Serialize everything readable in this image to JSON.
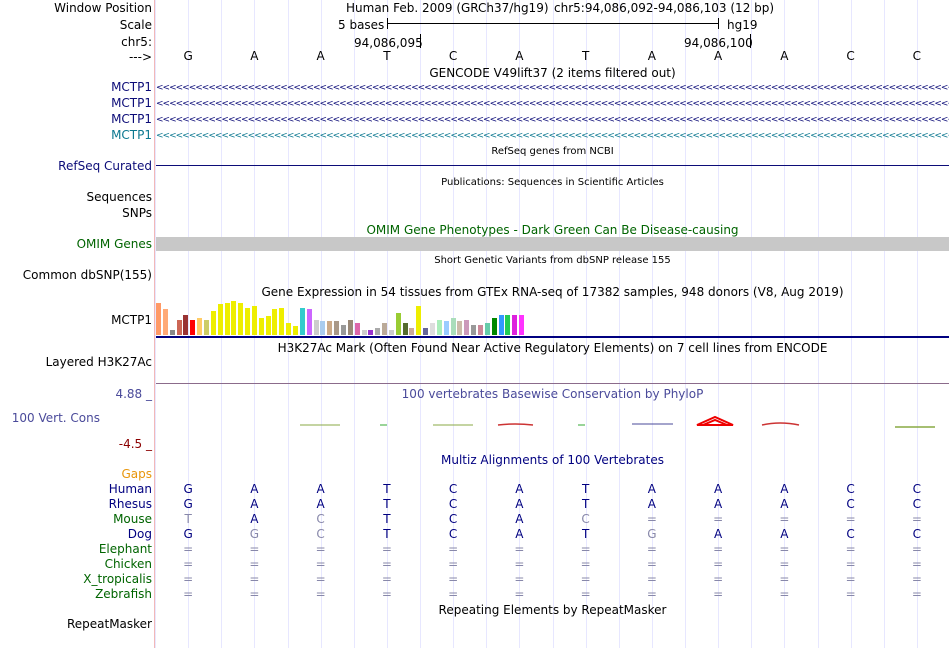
{
  "header": {
    "window_position_label": "Window Position",
    "window_position_text": "Human Feb. 2009 (GRCh37/hg19)",
    "position_range": "chr5:94,086,092-94,086,103 (12 bp)",
    "scale_label": "Scale",
    "scale_bar_text": "5 bases",
    "scale_db": "hg19",
    "chrom_label": "chr5:",
    "coord_left": "94,086,095",
    "coord_right": "94,086,100",
    "strand_label": "--->"
  },
  "sequence": [
    "G",
    "A",
    "A",
    "T",
    "C",
    "A",
    "T",
    "A",
    "A",
    "A",
    "C",
    "C"
  ],
  "gencode": {
    "title": "GENCODE V49lift37 (2 items filtered out)",
    "tracks": [
      "MCTP1",
      "MCTP1",
      "MCTP1",
      "MCTP1"
    ],
    "colors": [
      "#0c0c78",
      "#0c0c78",
      "#0c0c78",
      "#0c7890"
    ]
  },
  "refseq": {
    "title": "RefSeq genes from NCBI",
    "label": "RefSeq Curated",
    "color": "#0c0c78"
  },
  "publications": {
    "title": "Publications: Sequences in Scientific Articles",
    "label_1": "Sequences",
    "label_2": "SNPs"
  },
  "omim": {
    "title": "OMIM Gene Phenotypes - Dark Green Can Be Disease-causing",
    "label": "OMIM Genes",
    "color": "#006400",
    "bar_color": "#c8c8c8"
  },
  "dbsnp": {
    "title": "Short Genetic Variants from dbSNP release 155",
    "label": "Common dbSNP(155)"
  },
  "gtex": {
    "title": "Gene Expression in 54 tissues from GTEx RNA-seq of 17382 samples, 948 donors (V8, Aug 2019)",
    "label": "MCTP1",
    "bars": [
      {
        "v": 0.95,
        "c": "#ff9966"
      },
      {
        "v": 0.75,
        "c": "#ffaa77"
      },
      {
        "v": 0.15,
        "c": "#888888"
      },
      {
        "v": 0.45,
        "c": "#cc6655"
      },
      {
        "v": 0.6,
        "c": "#993333"
      },
      {
        "v": 0.45,
        "c": "#ff0000"
      },
      {
        "v": 0.5,
        "c": "#ffcc66"
      },
      {
        "v": 0.45,
        "c": "#cccc66"
      },
      {
        "v": 0.7,
        "c": "#eeee00"
      },
      {
        "v": 0.9,
        "c": "#eeee00"
      },
      {
        "v": 0.95,
        "c": "#eeee00"
      },
      {
        "v": 1.0,
        "c": "#eeee00"
      },
      {
        "v": 0.95,
        "c": "#eeee00"
      },
      {
        "v": 0.8,
        "c": "#eeee00"
      },
      {
        "v": 0.85,
        "c": "#eeee00"
      },
      {
        "v": 0.5,
        "c": "#eeee00"
      },
      {
        "v": 0.55,
        "c": "#eeee00"
      },
      {
        "v": 0.75,
        "c": "#eeee00"
      },
      {
        "v": 0.8,
        "c": "#eeee00"
      },
      {
        "v": 0.35,
        "c": "#eeee00"
      },
      {
        "v": 0.25,
        "c": "#eeee00"
      },
      {
        "v": 0.8,
        "c": "#33cccc"
      },
      {
        "v": 0.75,
        "c": "#cc66ff"
      },
      {
        "v": 0.45,
        "c": "#cccccc"
      },
      {
        "v": 0.4,
        "c": "#aaccee"
      },
      {
        "v": 0.4,
        "c": "#ccaa88"
      },
      {
        "v": 0.4,
        "c": "#aa9988"
      },
      {
        "v": 0.3,
        "c": "#999999"
      },
      {
        "v": 0.45,
        "c": "#998877"
      },
      {
        "v": 0.35,
        "c": "#dd66aa"
      },
      {
        "v": 0.15,
        "c": "#cccccc"
      },
      {
        "v": 0.15,
        "c": "#9933cc"
      },
      {
        "v": 0.2,
        "c": "#aaaaaa"
      },
      {
        "v": 0.35,
        "c": "#bbaa99"
      },
      {
        "v": 0.15,
        "c": "#cccccc"
      },
      {
        "v": 0.65,
        "c": "#99cc33"
      },
      {
        "v": 0.35,
        "c": "#556b2f"
      },
      {
        "v": 0.2,
        "c": "#ccaa99"
      },
      {
        "v": 0.85,
        "c": "#eeee00"
      },
      {
        "v": 0.2,
        "c": "#666699"
      },
      {
        "v": 0.35,
        "c": "#dddddd"
      },
      {
        "v": 0.45,
        "c": "#aaeebb"
      },
      {
        "v": 0.4,
        "c": "#99ccff"
      },
      {
        "v": 0.5,
        "c": "#aaddbb"
      },
      {
        "v": 0.4,
        "c": "#ccbbaa"
      },
      {
        "v": 0.45,
        "c": "#cc99bb"
      },
      {
        "v": 0.3,
        "c": "#999999"
      },
      {
        "v": 0.3,
        "c": "#cc8899"
      },
      {
        "v": 0.35,
        "c": "#66ccaa"
      },
      {
        "v": 0.5,
        "c": "#008800"
      },
      {
        "v": 0.6,
        "c": "#3399ff"
      },
      {
        "v": 0.6,
        "c": "#22cc55"
      },
      {
        "v": 0.6,
        "c": "#dd22dd"
      },
      {
        "v": 0.6,
        "c": "#ff33ff"
      }
    ],
    "line_color": "#000080"
  },
  "h3k27ac": {
    "title": "H3K27Ac Mark (Often Found Near Active Regulatory Elements) on 7 cell lines from ENCODE",
    "label": "Layered H3K27Ac"
  },
  "phylop": {
    "title": "100 vertebrates Basewise Conservation by PhyloP",
    "label": "100 Vert. Cons",
    "max": "4.88 _",
    "min": "-4.5 _",
    "color": "#4a4a9a",
    "min_color": "#8b0000"
  },
  "multiz": {
    "title": "Multiz Alignments of 100 Vertebrates",
    "gaps_label": "Gaps",
    "gaps_color": "#e8960c",
    "species": [
      {
        "name": "Human",
        "color": "#000080",
        "bases": [
          "G",
          "A",
          "A",
          "T",
          "C",
          "A",
          "T",
          "A",
          "A",
          "A",
          "C",
          "C"
        ],
        "base_colors": [
          "#000080",
          "#000080",
          "#000080",
          "#000080",
          "#000080",
          "#000080",
          "#000080",
          "#000080",
          "#000080",
          "#000080",
          "#000080",
          "#000080"
        ]
      },
      {
        "name": "Rhesus",
        "color": "#000080",
        "bases": [
          "G",
          "A",
          "A",
          "T",
          "C",
          "A",
          "T",
          "A",
          "A",
          "A",
          "C",
          "C"
        ],
        "base_colors": [
          "#000080",
          "#000080",
          "#000080",
          "#000080",
          "#000080",
          "#000080",
          "#000080",
          "#000080",
          "#000080",
          "#000080",
          "#000080",
          "#000080"
        ]
      },
      {
        "name": "Mouse",
        "color": "#006400",
        "bases": [
          "T",
          "A",
          "C",
          "T",
          "C",
          "A",
          "C",
          "=",
          "=",
          "=",
          "=",
          "="
        ],
        "base_colors": [
          "#8888aa",
          "#000080",
          "#8888aa",
          "#000080",
          "#000080",
          "#000080",
          "#8888aa",
          "#8888aa",
          "#8888aa",
          "#8888aa",
          "#8888aa",
          "#8888aa"
        ]
      },
      {
        "name": "Dog",
        "color": "#000080",
        "bases": [
          "G",
          "G",
          "C",
          "T",
          "C",
          "A",
          "T",
          "G",
          "A",
          "A",
          "C",
          "C"
        ],
        "base_colors": [
          "#000080",
          "#8888aa",
          "#8888aa",
          "#000080",
          "#000080",
          "#000080",
          "#000080",
          "#8888aa",
          "#000080",
          "#000080",
          "#000080",
          "#000080"
        ]
      },
      {
        "name": "Elephant",
        "color": "#006400",
        "bases": [
          "=",
          "=",
          "=",
          "=",
          "=",
          "=",
          "=",
          "=",
          "=",
          "=",
          "=",
          "="
        ],
        "base_colors": [
          "#8888aa",
          "#8888aa",
          "#8888aa",
          "#8888aa",
          "#8888aa",
          "#8888aa",
          "#8888aa",
          "#8888aa",
          "#8888aa",
          "#8888aa",
          "#8888aa",
          "#8888aa"
        ]
      },
      {
        "name": "Chicken",
        "color": "#006400",
        "bases": [
          "=",
          "=",
          "=",
          "=",
          "=",
          "=",
          "=",
          "=",
          "=",
          "=",
          "=",
          "="
        ],
        "base_colors": [
          "#8888aa",
          "#8888aa",
          "#8888aa",
          "#8888aa",
          "#8888aa",
          "#8888aa",
          "#8888aa",
          "#8888aa",
          "#8888aa",
          "#8888aa",
          "#8888aa",
          "#8888aa"
        ]
      },
      {
        "name": "X_tropicalis",
        "color": "#006400",
        "bases": [
          "=",
          "=",
          "=",
          "=",
          "=",
          "=",
          "=",
          "=",
          "=",
          "=",
          "=",
          "="
        ],
        "base_colors": [
          "#8888aa",
          "#8888aa",
          "#8888aa",
          "#8888aa",
          "#8888aa",
          "#8888aa",
          "#8888aa",
          "#8888aa",
          "#8888aa",
          "#8888aa",
          "#8888aa",
          "#8888aa"
        ]
      },
      {
        "name": "Zebrafish",
        "color": "#006400",
        "bases": [
          "=",
          "=",
          "=",
          "=",
          "=",
          "=",
          "=",
          "=",
          "=",
          "=",
          "=",
          "="
        ],
        "base_colors": [
          "#8888aa",
          "#8888aa",
          "#8888aa",
          "#8888aa",
          "#8888aa",
          "#8888aa",
          "#8888aa",
          "#8888aa",
          "#8888aa",
          "#8888aa",
          "#8888aa",
          "#8888aa"
        ]
      }
    ]
  },
  "repeatmasker": {
    "title": "Repeating Elements by RepeatMasker",
    "label": "RepeatMasker"
  }
}
